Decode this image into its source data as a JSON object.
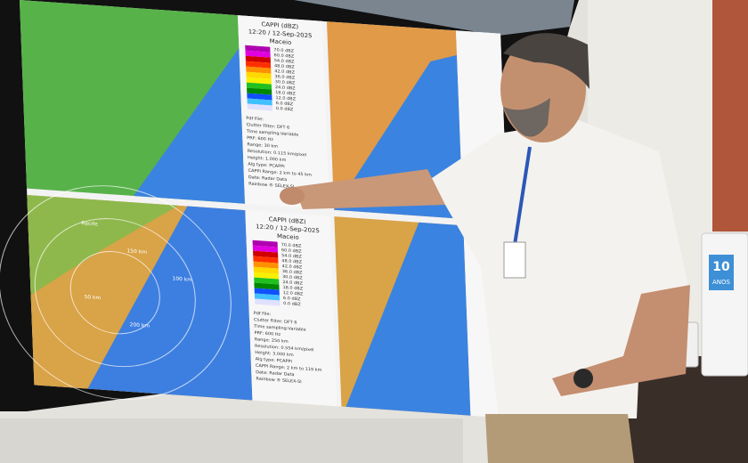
{
  "panels": [
    {
      "title": "CAPPI (dBZ)",
      "time": "12:20 / 12-Sep-2025",
      "location": "Maceio",
      "legend": [
        "70.0 dBZ",
        "60.0 dBZ",
        "54.0 dBZ",
        "48.0 dBZ",
        "42.0 dBZ",
        "36.0 dBZ",
        "30.0 dBZ",
        "24.0 dBZ",
        "18.0 dBZ",
        "12.0 dBZ",
        "6.0 dBZ",
        "0.0 dBZ"
      ],
      "info": [
        "Pdf File:",
        "Clutter Filter:  DFT 6",
        "Time sampling:Variable",
        "PRF:  600 Hz",
        "Range:  30 km",
        "Resolution:  0.115 km/pixel",
        "Height:  1.000 km",
        "Alg type:  PCAPPI",
        "CAPPI Range:  2 km to 45 km",
        "Data:  Radar Data",
        "Rainbow ® SELEX-SI"
      ],
      "map_labels": []
    },
    {
      "title": "CAPPI (dBZ)",
      "time": "12:20 / 12-Sep-2025",
      "location": "Maceio",
      "legend": [
        "70.0 dBZ",
        "60.0 dBZ",
        "54.0 dBZ",
        "48.0 dBZ",
        "42.0 dBZ",
        "36.0 dBZ",
        "30.0 dBZ",
        "24.0 dBZ",
        "18.0 dBZ",
        "12.0 dBZ",
        "6.0 dBZ",
        "0.0 dBZ"
      ],
      "info": [
        "Pdf File:",
        "Clutter Filter:  DFT 6",
        "Time sampling:Variable",
        "PRF:  600 Hz",
        "Range:  250 km",
        "Resolution:  0.554 km/pixel",
        "Height:  3.000 km",
        "Alg type:  PCAPPI",
        "CAPPI Range:  2 km to 119 km",
        "Data:  Radar Data",
        "Rainbow ® SELEX-SI"
      ],
      "map_labels": [
        "Recife",
        "150 km",
        "100 km",
        "50 km",
        "200 km"
      ]
    }
  ],
  "badge": {
    "number": "10",
    "text": "ANOS"
  }
}
